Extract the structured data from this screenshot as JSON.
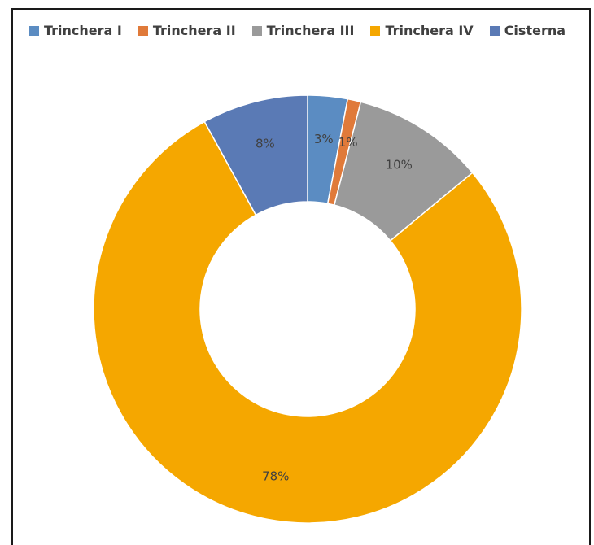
{
  "chart_data": {
    "type": "pie",
    "variant": "donut",
    "title": "",
    "legend_position": "top",
    "series": [
      {
        "name": "Trinchera I",
        "value": 3,
        "label": "3%",
        "color": "#5b8cc2"
      },
      {
        "name": "Trinchera II",
        "value": 1,
        "label": "1%",
        "color": "#e07a3a"
      },
      {
        "name": "Trinchera III",
        "value": 10,
        "label": "10%",
        "color": "#9a9a9a"
      },
      {
        "name": "Trinchera IV",
        "value": 78,
        "label": "78%",
        "color": "#f5a700"
      },
      {
        "name": "Cisterna",
        "value": 8,
        "label": "8%",
        "color": "#5a7ab5"
      }
    ]
  }
}
